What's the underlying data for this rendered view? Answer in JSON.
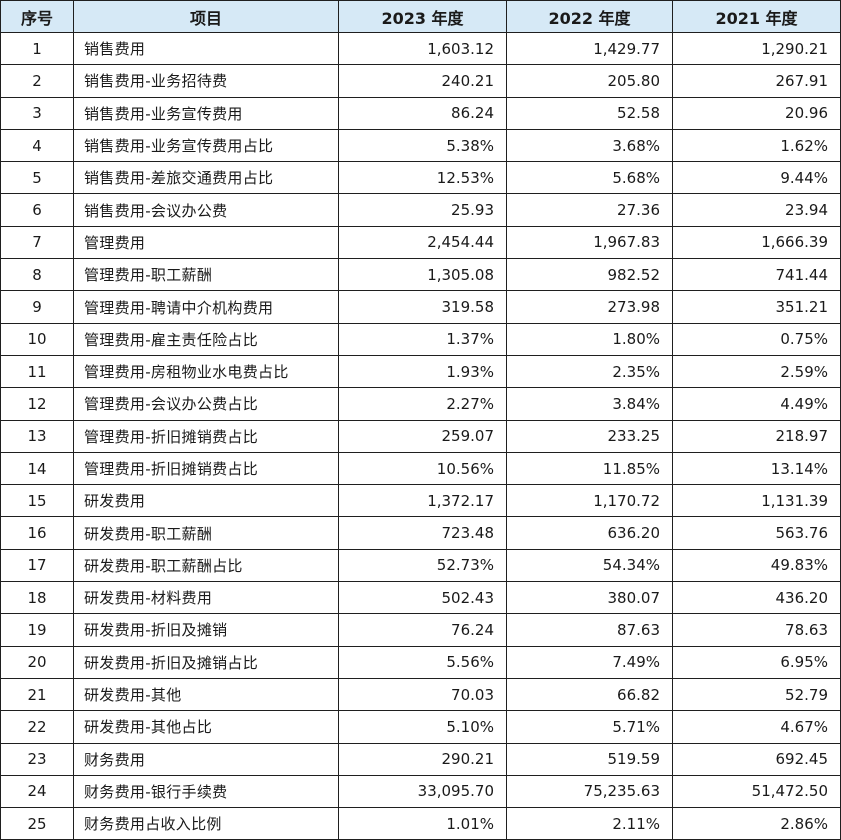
{
  "table": {
    "headers": [
      "序号",
      "项目",
      "2023 年度",
      "2022 年度",
      "2021 年度"
    ],
    "rows": [
      [
        "1",
        "销售费用",
        "1,603.12",
        "1,429.77",
        "1,290.21"
      ],
      [
        "2",
        "销售费用-业务招待费",
        "240.21",
        "205.80",
        "267.91"
      ],
      [
        "3",
        "销售费用-业务宣传费用",
        "86.24",
        "52.58",
        "20.96"
      ],
      [
        "4",
        "销售费用-业务宣传费用占比",
        "5.38%",
        "3.68%",
        "1.62%"
      ],
      [
        "5",
        "销售费用-差旅交通费用占比",
        "12.53%",
        "5.68%",
        "9.44%"
      ],
      [
        "6",
        "销售费用-会议办公费",
        "25.93",
        "27.36",
        "23.94"
      ],
      [
        "7",
        "管理费用",
        "2,454.44",
        "1,967.83",
        "1,666.39"
      ],
      [
        "8",
        "管理费用-职工薪酬",
        "1,305.08",
        "982.52",
        "741.44"
      ],
      [
        "9",
        "管理费用-聘请中介机构费用",
        "319.58",
        "273.98",
        "351.21"
      ],
      [
        "10",
        "管理费用-雇主责任险占比",
        "1.37%",
        "1.80%",
        "0.75%"
      ],
      [
        "11",
        "管理费用-房租物业水电费占比",
        "1.93%",
        "2.35%",
        "2.59%"
      ],
      [
        "12",
        "管理费用-会议办公费占比",
        "2.27%",
        "3.84%",
        "4.49%"
      ],
      [
        "13",
        "管理费用-折旧摊销费占比",
        "259.07",
        "233.25",
        "218.97"
      ],
      [
        "14",
        "管理费用-折旧摊销费占比",
        "10.56%",
        "11.85%",
        "13.14%"
      ],
      [
        "15",
        "研发费用",
        "1,372.17",
        "1,170.72",
        "1,131.39"
      ],
      [
        "16",
        "研发费用-职工薪酬",
        "723.48",
        "636.20",
        "563.76"
      ],
      [
        "17",
        "研发费用-职工薪酬占比",
        "52.73%",
        "54.34%",
        "49.83%"
      ],
      [
        "18",
        "研发费用-材料费用",
        "502.43",
        "380.07",
        "436.20"
      ],
      [
        "19",
        "研发费用-折旧及摊销",
        "76.24",
        "87.63",
        "78.63"
      ],
      [
        "20",
        "研发费用-折旧及摊销占比",
        "5.56%",
        "7.49%",
        "6.95%"
      ],
      [
        "21",
        "研发费用-其他",
        "70.03",
        "66.82",
        "52.79"
      ],
      [
        "22",
        "研发费用-其他占比",
        "5.10%",
        "5.71%",
        "4.67%"
      ],
      [
        "23",
        "财务费用",
        "290.21",
        "519.59",
        "692.45"
      ],
      [
        "24",
        "财务费用-银行手续费",
        "33,095.70",
        "75,235.63",
        "51,472.50"
      ],
      [
        "25",
        "财务费用占收入比例",
        "1.01%",
        "2.11%",
        "2.86%"
      ]
    ]
  },
  "colors": {
    "header_background": "#d6e9f6",
    "border": "#1f1f1f",
    "text": "#1a1a1a"
  }
}
